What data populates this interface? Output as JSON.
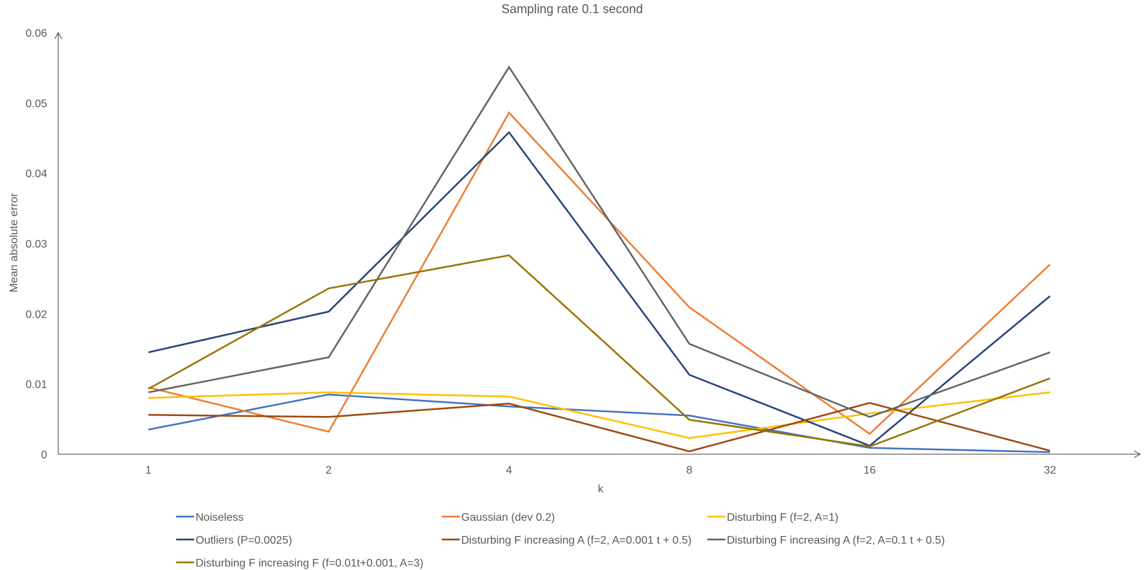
{
  "chart_data": {
    "type": "line",
    "title": "Sampling rate 0.1 second",
    "xlabel": "k",
    "ylabel": "Mean absolute error",
    "categories": [
      "1",
      "2",
      "4",
      "8",
      "16",
      "32"
    ],
    "yticks": [
      "0",
      "0.01",
      "0.02",
      "0.03",
      "0.04",
      "0.05",
      "0.06"
    ],
    "ylim": [
      0,
      0.06
    ],
    "grid": false,
    "legend_position": "bottom",
    "series": [
      {
        "name": "Noiseless",
        "color": "#4472C4",
        "values": [
          0.0035,
          0.0085,
          0.0068,
          0.0055,
          0.0009,
          0.0003
        ]
      },
      {
        "name": "Gaussian (dev 0.2)",
        "color": "#ED7D31",
        "values": [
          0.0095,
          0.0032,
          0.0486,
          0.0209,
          0.0029,
          0.027
        ]
      },
      {
        "name": "Disturbing F (f=2, A=1)",
        "color": "#FFC000",
        "values": [
          0.008,
          0.0088,
          0.0082,
          0.0023,
          0.0058,
          0.0088
        ]
      },
      {
        "name": "Outliers (P=0.0025)",
        "color": "#264478",
        "values": [
          0.0145,
          0.0203,
          0.0458,
          0.0113,
          0.0012,
          0.0225
        ]
      },
      {
        "name": "Disturbing F increasing A (f=2, A=0.001 t + 0.5)",
        "color": "#9E480E",
        "values": [
          0.0056,
          0.0053,
          0.0072,
          0.0004,
          0.0073,
          0.0005
        ]
      },
      {
        "name": "Disturbing F increasing A (f=2, A=0.1 t + 0.5)",
        "color": "#636363",
        "values": [
          0.0088,
          0.0138,
          0.0551,
          0.0157,
          0.0053,
          0.0145
        ]
      },
      {
        "name": "Disturbing F increasing F (f=0.01t+0.001, A=3)",
        "color": "#997300",
        "values": [
          0.0093,
          0.0236,
          0.0283,
          0.0049,
          0.0011,
          0.0108
        ]
      }
    ]
  }
}
